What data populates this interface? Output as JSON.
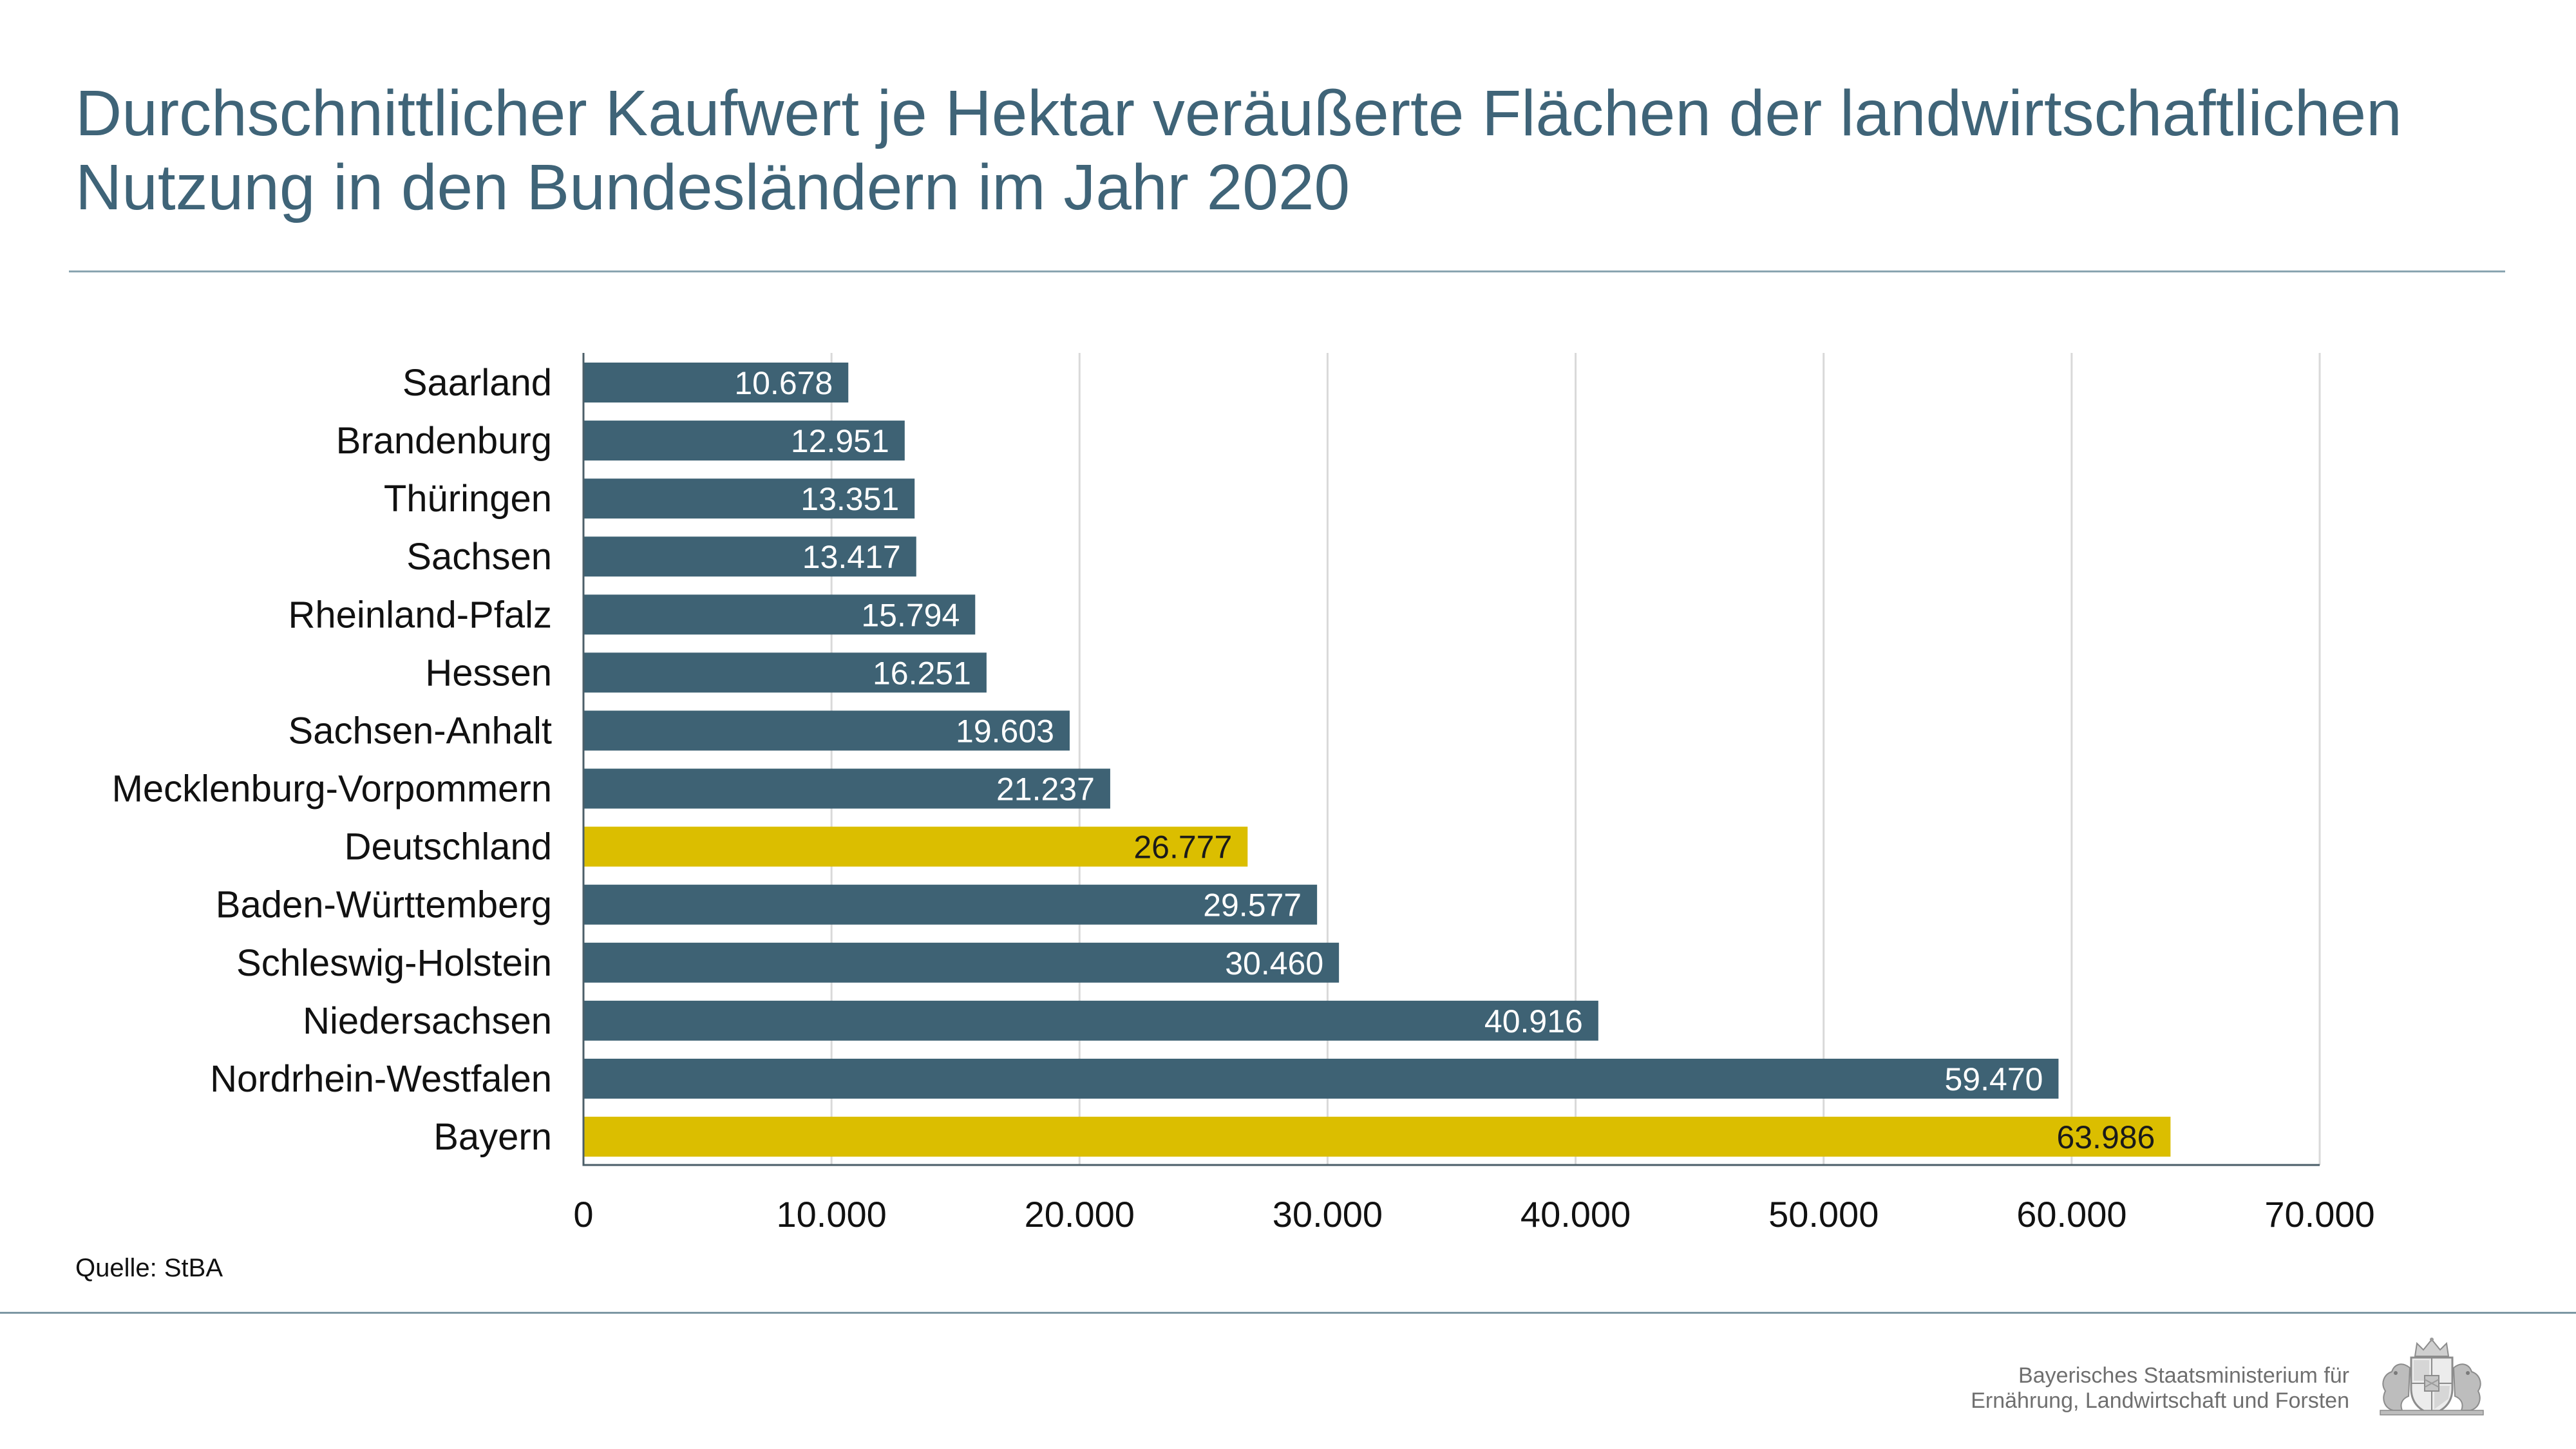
{
  "title_lines": [
    "Durchschnittlicher Kaufwert je Hektar veräußerte Flächen der landwirtschaftlichen",
    "Nutzung in den Bundesländern im Jahr 2020"
  ],
  "source": "Quelle: StBA",
  "footer": {
    "line1": "Bayerisches Staatsministerium für",
    "line2": "Ernährung, Landwirtschaft und Forsten",
    "logo_icon": "bavarian-coat-of-arms-icon"
  },
  "colors": {
    "title": "#3f6478",
    "bar": "#3e6274",
    "highlight": "#dbbe00",
    "label_on_bar": "#ffffff",
    "label_on_highlight": "#1a1a1a"
  },
  "chart_data": {
    "type": "bar",
    "orientation": "horizontal",
    "categories": [
      "Saarland",
      "Brandenburg",
      "Thüringen",
      "Sachsen",
      "Rheinland-Pfalz",
      "Hessen",
      "Sachsen-Anhalt",
      "Mecklenburg-Vorpommern",
      "Deutschland",
      "Baden-Württemberg",
      "Schleswig-Holstein",
      "Niedersachsen",
      "Nordrhein-Westfalen",
      "Bayern"
    ],
    "values": [
      10678,
      12951,
      13351,
      13417,
      15794,
      16251,
      19603,
      21237,
      26777,
      29577,
      30460,
      40916,
      59470,
      63986
    ],
    "value_labels": [
      "10.678",
      "12.951",
      "13.351",
      "13.417",
      "15.794",
      "16.251",
      "19.603",
      "21.237",
      "26.777",
      "29.577",
      "30.460",
      "40.916",
      "59.470",
      "63.986"
    ],
    "highlight": [
      false,
      false,
      false,
      false,
      false,
      false,
      false,
      false,
      true,
      false,
      false,
      false,
      false,
      true
    ],
    "xlim": [
      0,
      70000
    ],
    "xticks": [
      0,
      10000,
      20000,
      30000,
      40000,
      50000,
      60000,
      70000
    ],
    "xtick_labels": [
      "0",
      "10.000",
      "20.000",
      "30.000",
      "40.000",
      "50.000",
      "60.000",
      "70.000"
    ],
    "grid": true,
    "legend": "none"
  }
}
